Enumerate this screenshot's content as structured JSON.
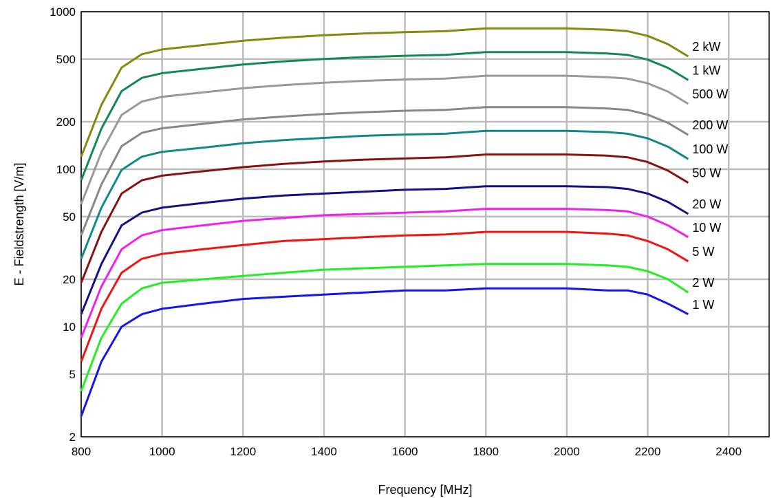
{
  "chart_data": {
    "type": "line",
    "title": "",
    "xlabel": "Frequency [MHz]",
    "ylabel": "E - Fieldstrength [V/m]",
    "xlim": [
      800,
      2500
    ],
    "ylim": [
      2,
      1000
    ],
    "yscale": "log",
    "grid": true,
    "legend": "inline labels at right end of each line",
    "x_ticks": [
      "800",
      "1000",
      "1200",
      "1400",
      "1600",
      "1800",
      "2000",
      "2200",
      "2400"
    ],
    "y_ticks": [
      "2",
      "5",
      "10",
      "20",
      "50",
      "100",
      "200",
      "500",
      "1000"
    ],
    "x": [
      800,
      850,
      900,
      950,
      1000,
      1100,
      1200,
      1300,
      1400,
      1500,
      1600,
      1700,
      1800,
      1900,
      2000,
      2100,
      2150,
      2200,
      2250,
      2300
    ],
    "series": [
      {
        "name": "1 W",
        "color": "#1515ee",
        "values": [
          2.7,
          6.0,
          10.0,
          12.0,
          13.0,
          14.0,
          15.0,
          15.5,
          16.0,
          16.5,
          17.0,
          17.0,
          17.5,
          17.5,
          17.5,
          17.0,
          17.0,
          16.0,
          14.0,
          12.0
        ]
      },
      {
        "name": "2 W",
        "color": "#22ee22",
        "values": [
          3.9,
          8.5,
          14.0,
          17.5,
          19.0,
          20.0,
          21.0,
          22.0,
          23.0,
          23.5,
          24.0,
          24.5,
          25.0,
          25.0,
          25.0,
          24.5,
          24.0,
          22.5,
          20.0,
          16.5
        ]
      },
      {
        "name": "5 W",
        "color": "#ee1515",
        "values": [
          6.0,
          13.0,
          22.0,
          27.0,
          29.0,
          31.0,
          33.0,
          35.0,
          36.0,
          37.0,
          38.0,
          38.5,
          40.0,
          40.0,
          40.0,
          39.0,
          38.0,
          35.0,
          31.0,
          26.0
        ]
      },
      {
        "name": "10 W",
        "color": "#ee22ee",
        "values": [
          8.5,
          18.0,
          31.0,
          38.0,
          41.0,
          44.0,
          47.0,
          49.0,
          51.0,
          52.0,
          53.0,
          54.0,
          56.0,
          56.0,
          56.0,
          55.0,
          54.0,
          50.0,
          44.0,
          37.0
        ]
      },
      {
        "name": "20 W",
        "color": "#121288",
        "values": [
          12.0,
          25.0,
          44.0,
          53.0,
          57.0,
          61.0,
          65.0,
          68.0,
          70.0,
          72.0,
          74.0,
          75.0,
          78.0,
          78.0,
          78.0,
          77.0,
          75.0,
          70.0,
          62.0,
          52.0
        ]
      },
      {
        "name": "50 W",
        "color": "#881111",
        "values": [
          19.0,
          40.0,
          70.0,
          85.0,
          91.0,
          97.0,
          103.0,
          108.0,
          112.0,
          115.0,
          117.0,
          119.0,
          124.0,
          124.0,
          124.0,
          122.0,
          119.0,
          111.0,
          98.0,
          82.0
        ]
      },
      {
        "name": "100 W",
        "color": "#128888",
        "values": [
          27.0,
          57.0,
          99.0,
          120.0,
          129.0,
          137.0,
          146.0,
          153.0,
          158.0,
          163.0,
          166.0,
          168.0,
          175.0,
          175.0,
          175.0,
          172.0,
          168.0,
          157.0,
          139.0,
          116.0
        ]
      },
      {
        "name": "200 W",
        "color": "#888888",
        "values": [
          38.0,
          80.0,
          140.0,
          170.0,
          182.0,
          194.0,
          207.0,
          216.0,
          224.0,
          230.0,
          235.0,
          238.0,
          248.0,
          248.0,
          248.0,
          243.0,
          238.0,
          222.0,
          197.0,
          165.0
        ]
      },
      {
        "name": "500 W",
        "color": "#999999",
        "values": [
          60.0,
          128.0,
          221.0,
          269.0,
          288.0,
          307.0,
          327.0,
          342.0,
          354.0,
          364.0,
          371.0,
          376.0,
          392.0,
          392.0,
          392.0,
          384.0,
          376.0,
          351.0,
          311.0,
          260.0
        ]
      },
      {
        "name": "1 kW",
        "color": "#128855",
        "values": [
          85.0,
          181.0,
          313.0,
          380.0,
          407.0,
          434.0,
          462.0,
          484.0,
          501.0,
          515.0,
          525.0,
          532.0,
          554.0,
          554.0,
          554.0,
          543.0,
          532.0,
          496.0,
          440.0,
          368.0
        ]
      },
      {
        "name": "2 kW",
        "color": "#888811",
        "values": [
          120.0,
          256.0,
          442.0,
          537.0,
          576.0,
          614.0,
          654.0,
          684.0,
          708.0,
          728.0,
          742.0,
          752.0,
          784.0,
          784.0,
          784.0,
          768.0,
          752.0,
          702.0,
          622.0,
          520.0
        ]
      }
    ]
  }
}
